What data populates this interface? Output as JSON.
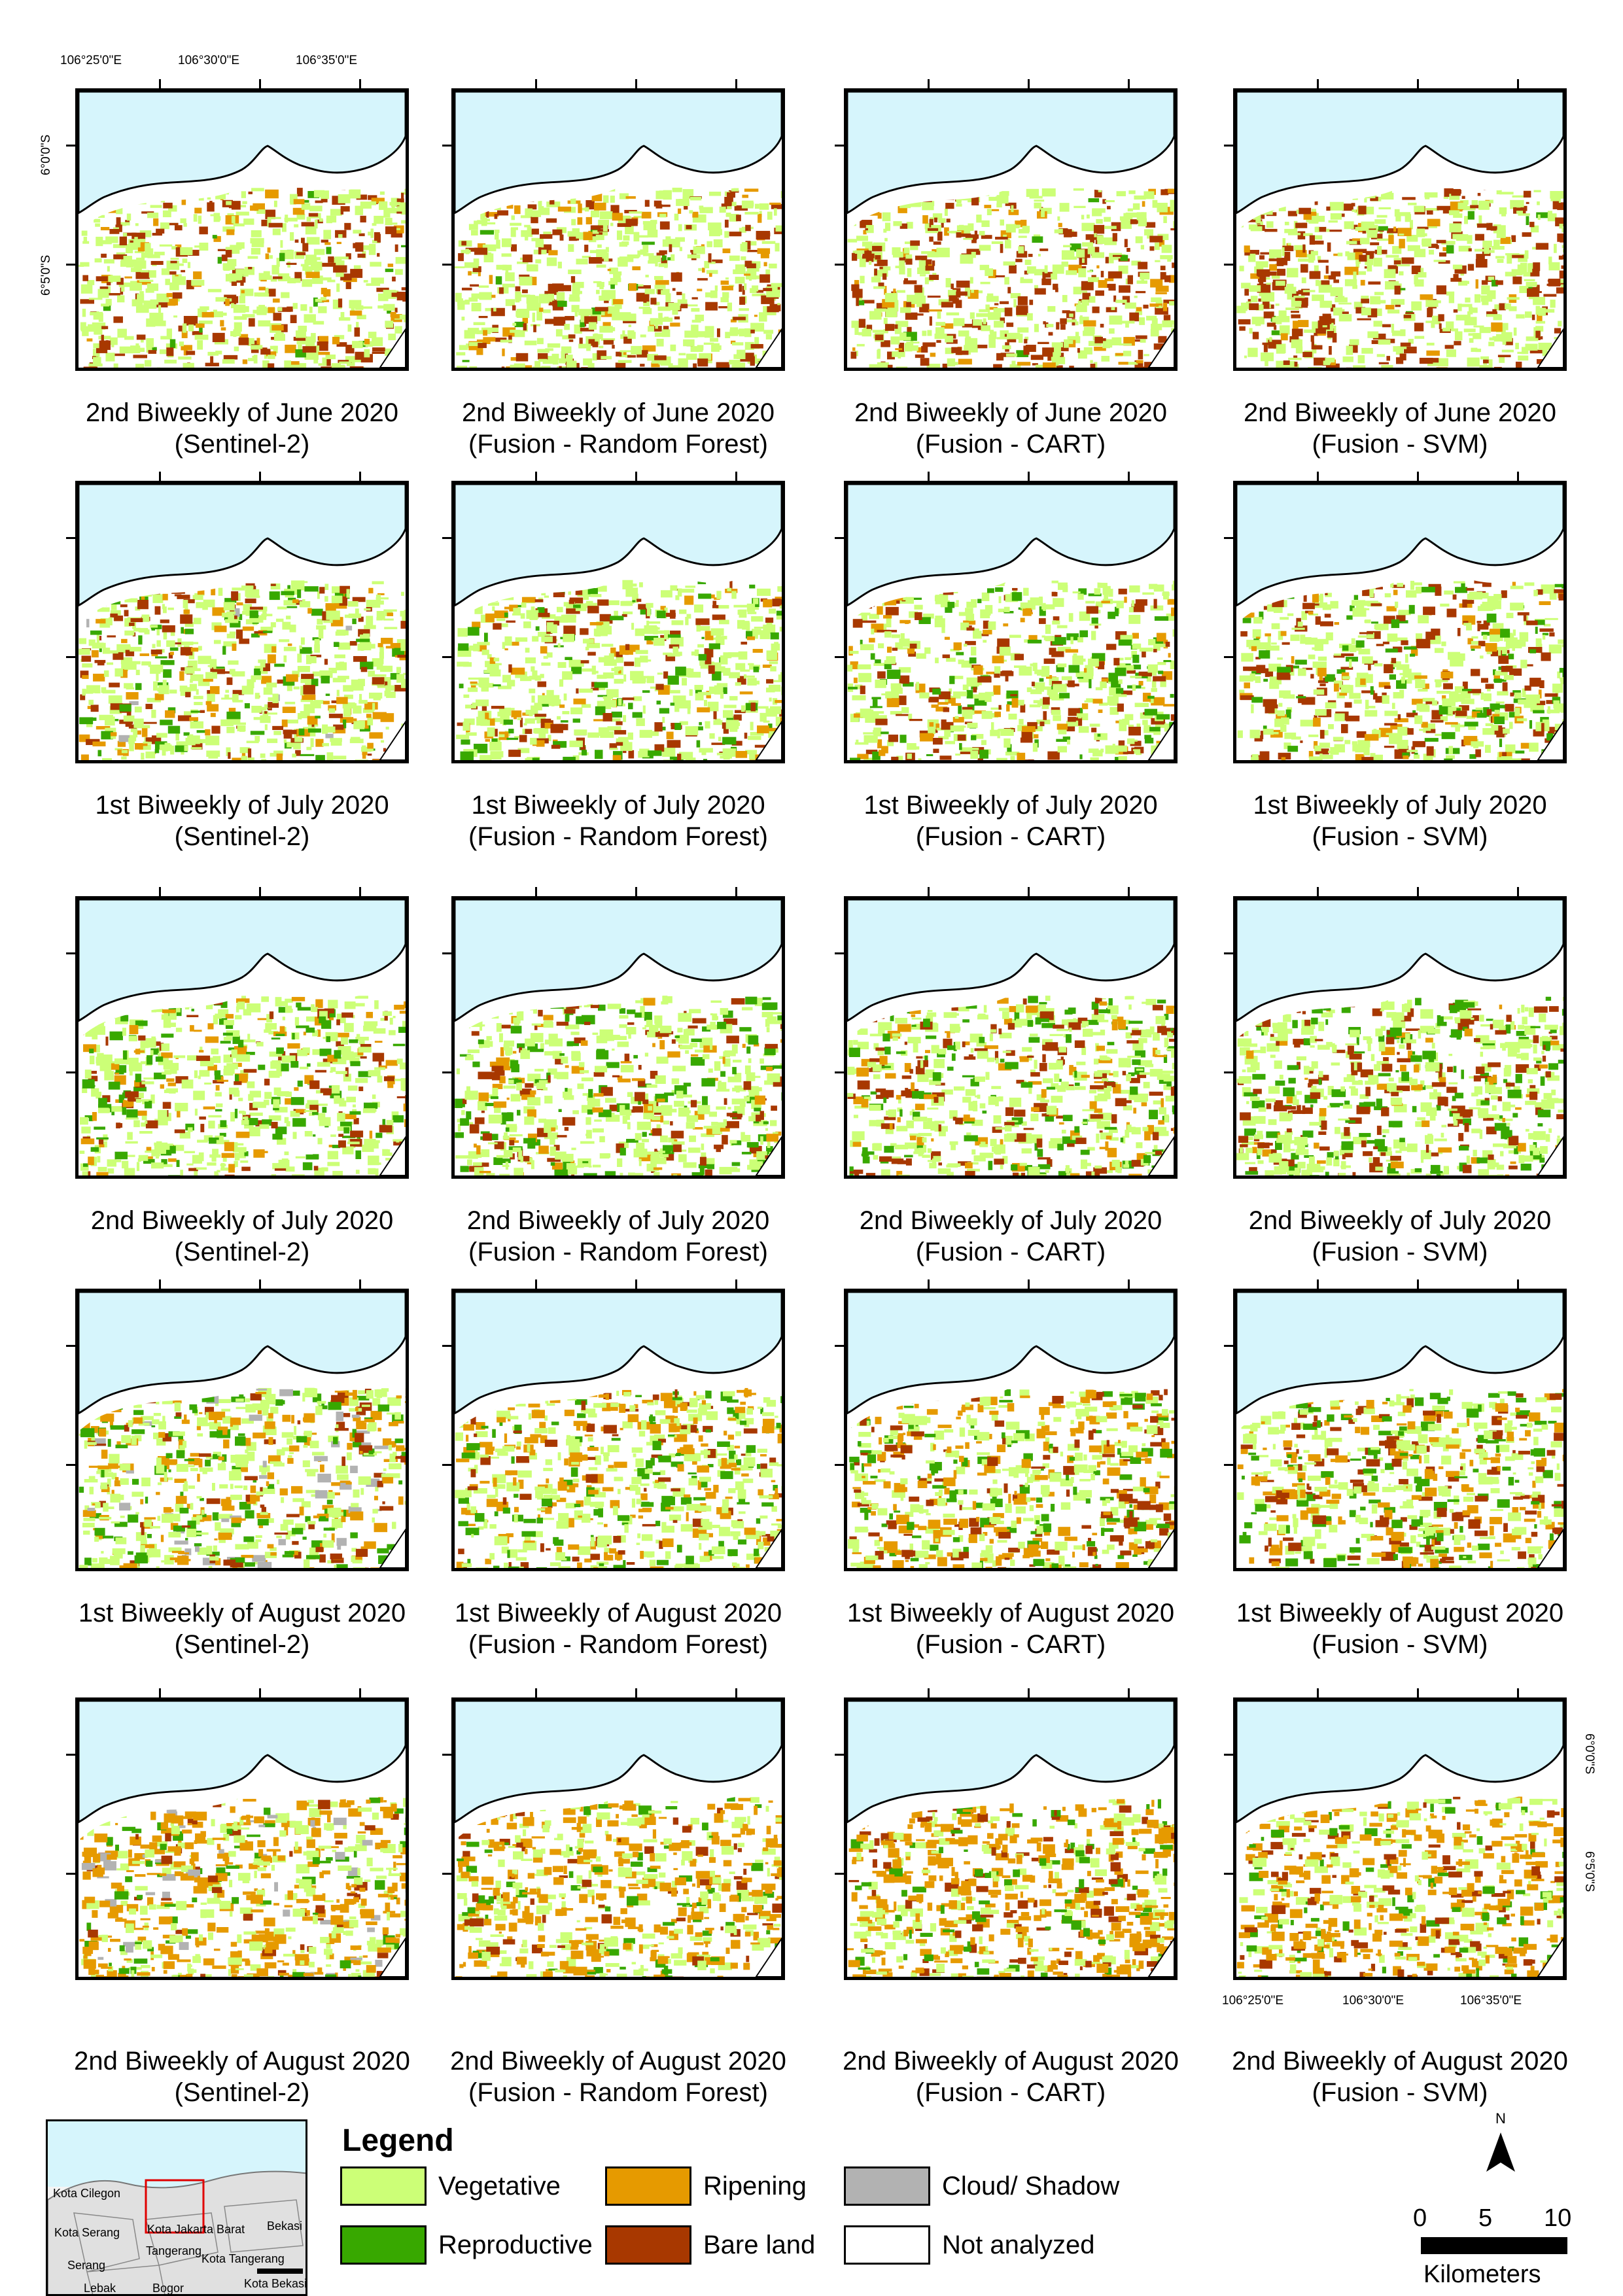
{
  "rows": [
    {
      "captions": [
        "2nd Biweekly of June 2020",
        "2nd Biweekly of June 2020",
        "2nd Biweekly of June 2020",
        "2nd Biweekly of June 2020"
      ]
    },
    {
      "captions": [
        "1st Biweekly of July 2020",
        "1st Biweekly of July 2020",
        "1st Biweekly of July 2020",
        "1st Biweekly of July 2020"
      ]
    },
    {
      "captions": [
        "2nd Biweekly of July 2020",
        "2nd Biweekly of July 2020",
        "2nd Biweekly of July 2020",
        "2nd Biweekly of July 2020"
      ]
    },
    {
      "captions": [
        "1st Biweekly of August 2020",
        "1st Biweekly of August 2020",
        "1st Biweekly of August 2020",
        "1st Biweekly of August 2020"
      ]
    },
    {
      "captions": [
        "2nd Biweekly of August 2020",
        "2nd Biweekly of August 2020",
        "2nd Biweekly of August 2020",
        "2nd Biweekly of August 2020"
      ]
    }
  ],
  "sources": [
    "(Sentinel-2)",
    "(Fusion - Random Forest)",
    "(Fusion - CART)",
    "(Fusion - SVM)"
  ],
  "coordinates": {
    "lon": [
      "106°25'0\"E",
      "106°30'0\"E",
      "106°35'0\"E"
    ],
    "lat": [
      "6°0'0\"S",
      "6°5'0\"S"
    ]
  },
  "legend": {
    "title": "Legend",
    "items": [
      {
        "label": "Vegetative",
        "color": "#ccff77"
      },
      {
        "label": "Ripening",
        "color": "#e69a00"
      },
      {
        "label": "Cloud/ Shadow",
        "color": "#b2b2b2"
      },
      {
        "label": "Reproductive",
        "color": "#38a800"
      },
      {
        "label": "Bare land",
        "color": "#a83800"
      },
      {
        "label": "Not analyzed",
        "color": "#ffffff"
      }
    ]
  },
  "colors": {
    "sea": "#d6f5fc",
    "vegetative": "#ccff77",
    "reproductive": "#38a800",
    "ripening": "#e69a00",
    "bare_land": "#a83800",
    "cloud": "#b2b2b2"
  },
  "inset": {
    "places": [
      "Kota Cilegon",
      "Kota Serang",
      "Kota Jakarta Barat",
      "Bekasi",
      "Tangerang",
      "Kota Tangerang",
      "Serang",
      "Lebak",
      "Bogor",
      "Kota Bekasi"
    ],
    "highlight_color": "#e00000"
  },
  "north": {
    "label": "N"
  },
  "scale": {
    "ticks": [
      "0",
      "5",
      "10"
    ],
    "unit": "Kilometers"
  }
}
